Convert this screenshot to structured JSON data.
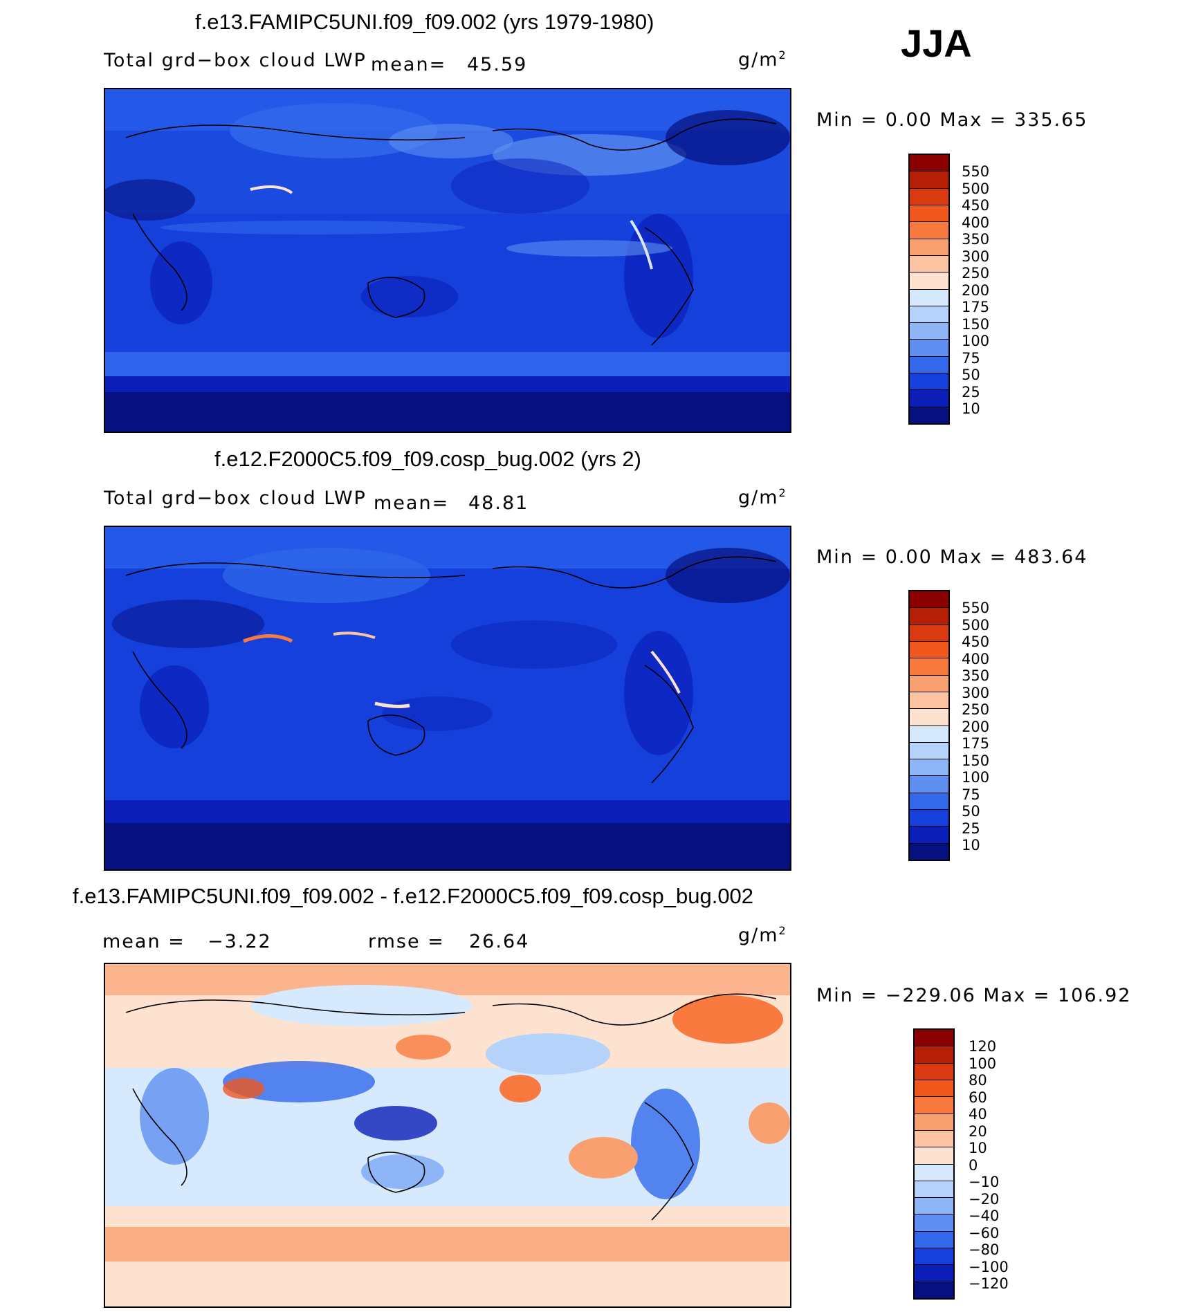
{
  "season": "JJA",
  "unit_base": "g/m",
  "unit_exp": "2",
  "panels": [
    {
      "title": "f.e13.FAMIPC5UNI.f09_f09.002 (yrs 1979-1980)",
      "variable": "Total grd−box cloud LWP",
      "mean_label": "mean=",
      "mean_value": "45.59",
      "minmax": "Min =     0.00  Max  =  335.65",
      "levels": [
        "550",
        "500",
        "450",
        "400",
        "350",
        "300",
        "250",
        "200",
        "175",
        "150",
        "100",
        "75",
        "50",
        "25",
        "10"
      ],
      "colors": [
        "#8b0000",
        "#b51f06",
        "#d93a10",
        "#f0571d",
        "#f87a3f",
        "#f9a070",
        "#fbc3a2",
        "#fde3cf",
        "#d7e9fc",
        "#b5d2fa",
        "#8eb6f6",
        "#5f90f1",
        "#3169ea",
        "#1540dc",
        "#0b1fb8",
        "#06107f"
      ]
    },
    {
      "title": "f.e12.F2000C5.f09_f09.cosp_bug.002 (yrs 2)",
      "variable": "Total grd−box cloud LWP",
      "mean_label": "mean=",
      "mean_value": "48.81",
      "minmax": "Min =     0.00  Max  =  483.64",
      "levels": [
        "550",
        "500",
        "450",
        "400",
        "350",
        "300",
        "250",
        "200",
        "175",
        "150",
        "100",
        "75",
        "50",
        "25",
        "10"
      ],
      "colors": [
        "#8b0000",
        "#b51f06",
        "#d93a10",
        "#f0571d",
        "#f87a3f",
        "#f9a070",
        "#fbc3a2",
        "#fde3cf",
        "#d7e9fc",
        "#b5d2fa",
        "#8eb6f6",
        "#5f90f1",
        "#3169ea",
        "#1540dc",
        "#0b1fb8",
        "#06107f"
      ]
    },
    {
      "title": "f.e13.FAMIPC5UNI.f09_f09.002 - f.e12.F2000C5.f09_f09.cosp_bug.002",
      "mean_label": "mean  =",
      "mean_value": "−3.22",
      "rmse_label": "rmse  =",
      "rmse_value": "26.64",
      "minmax": "Min  =  −229.06  Max  =  106.92",
      "levels": [
        "120",
        "100",
        "80",
        "60",
        "40",
        "20",
        "10",
        "0",
        "−10",
        "−20",
        "−40",
        "−60",
        "−80",
        "−100",
        "−120"
      ],
      "colors": [
        "#8b0000",
        "#b51f06",
        "#d93a10",
        "#f0571d",
        "#f87a3f",
        "#f9a070",
        "#fbc3a2",
        "#fde3cf",
        "#d7e9fc",
        "#b5d2fa",
        "#8eb6f6",
        "#5f90f1",
        "#3169ea",
        "#1540dc",
        "#0b1fb8",
        "#06107f"
      ]
    }
  ]
}
